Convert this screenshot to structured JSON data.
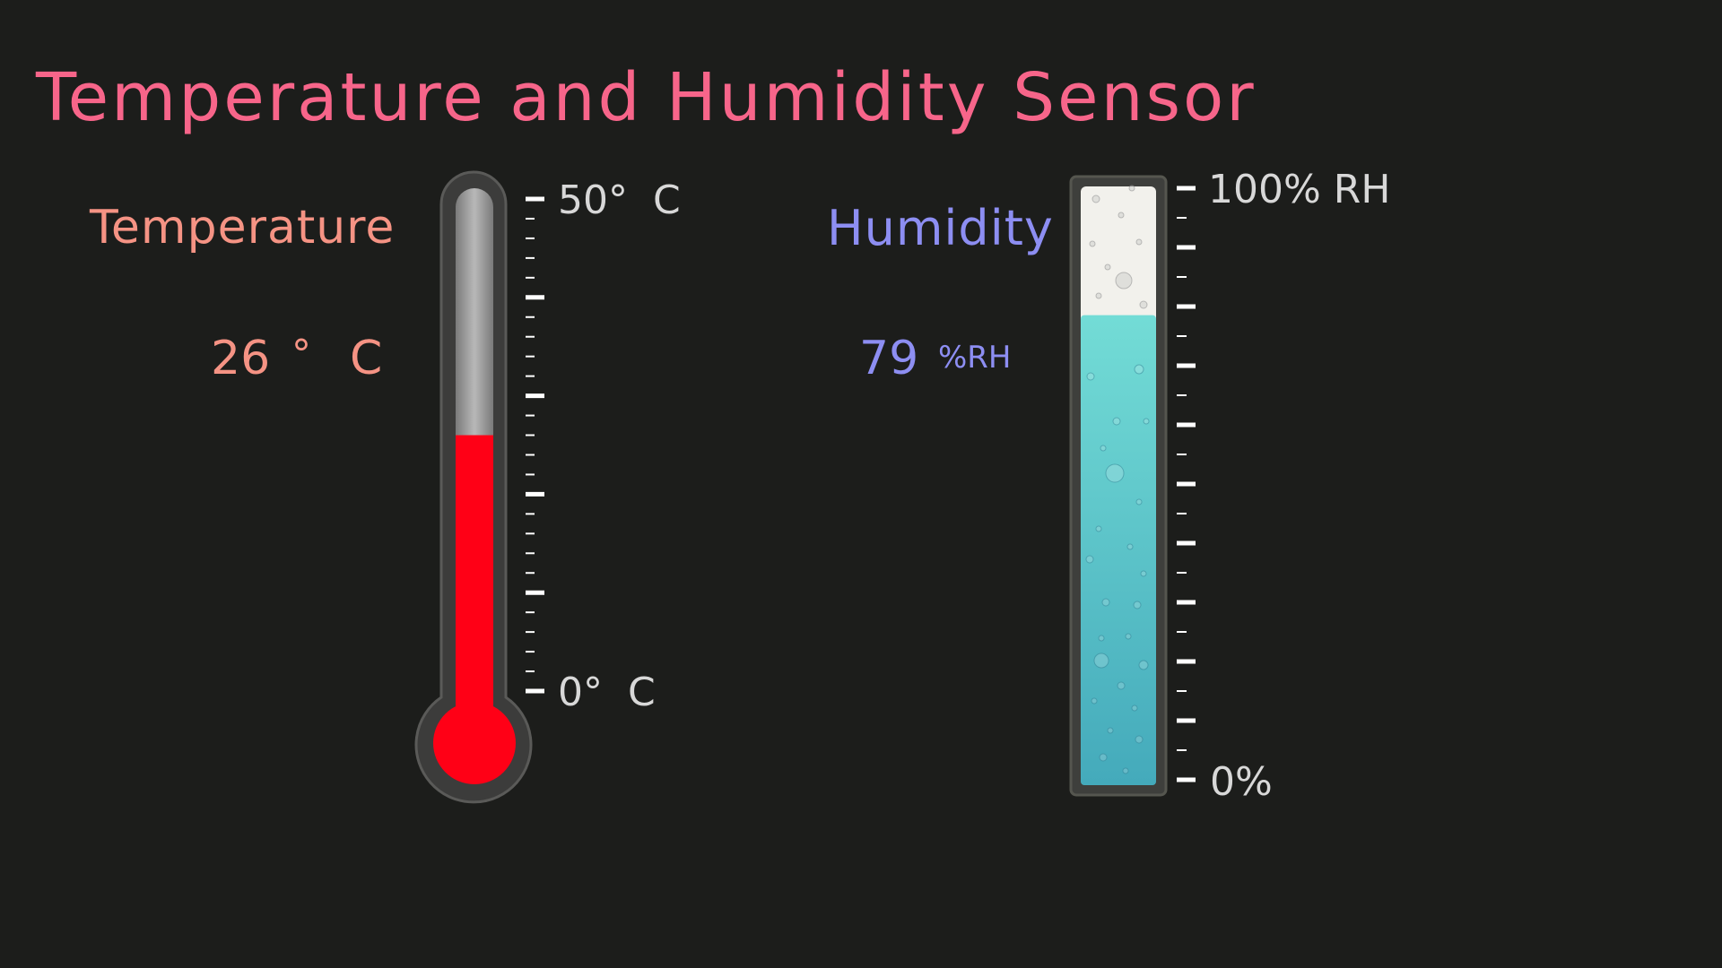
{
  "title": "Temperature and Humidity Sensor",
  "temperature": {
    "label": "Temperature",
    "value": "26",
    "degree_symbol": "°",
    "unit": "C",
    "scale_max_label": "50°  C",
    "scale_min_label": "0°  C",
    "scale_min": 0,
    "scale_max": 50,
    "reading": 26,
    "fill_color": "#ff0016",
    "empty_color": "#9b9b9b"
  },
  "humidity": {
    "label": "Humidity",
    "value": "79",
    "unit": "%RH",
    "scale_max_label": "100% RH",
    "scale_min_label": "0%",
    "scale_min": 0,
    "scale_max": 100,
    "reading": 79,
    "fill_color": "#5cc6cc",
    "empty_color": "#f2f1ec"
  },
  "colors": {
    "background": "#1c1d1b",
    "title": "#f7658a",
    "temperature_text": "#f59384",
    "humidity_text": "#8d8ef2",
    "scale_text": "#d8d8d8"
  }
}
